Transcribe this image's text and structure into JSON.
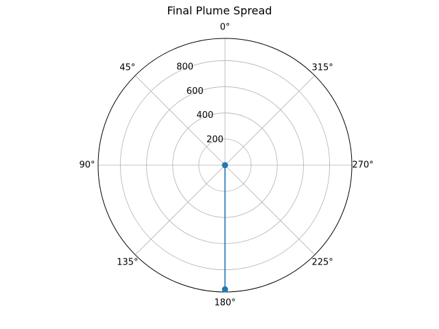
{
  "chart_data": {
    "type": "line",
    "projection": "polar",
    "title": "Final Plume Spread",
    "theta_direction": "counterclockwise",
    "theta_zero_location": "top",
    "theta_ticks_deg": [
      0,
      45,
      90,
      135,
      180,
      225,
      270,
      315
    ],
    "theta_tick_labels": [
      "0°",
      "45°",
      "90°",
      "135°",
      "180°",
      "225°",
      "270°",
      "315°"
    ],
    "r_ticks": [
      200,
      400,
      600,
      800
    ],
    "r_tick_labels": [
      "200",
      "400",
      "600",
      "800"
    ],
    "rlim": [
      0,
      970
    ],
    "grid": true,
    "legend": "none",
    "series": [
      {
        "color": "#1f77b4",
        "marker": "circle",
        "points": [
          {
            "theta_deg": 180,
            "r": 0
          },
          {
            "theta_deg": 180,
            "r": 950
          }
        ]
      }
    ]
  }
}
